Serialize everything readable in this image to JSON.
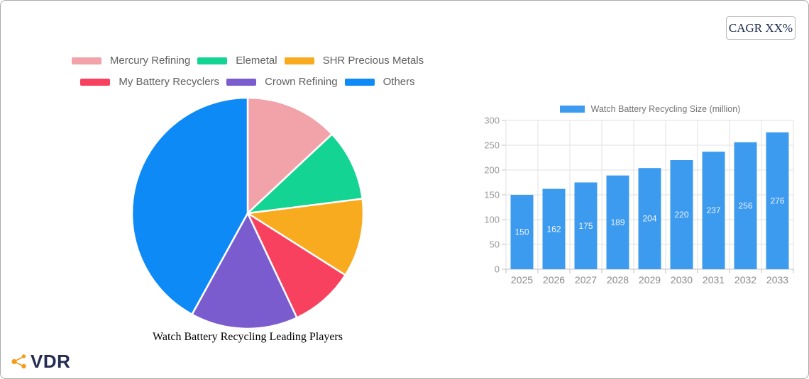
{
  "header": {
    "cagr_label": "CAGR XX%"
  },
  "logo": {
    "text": "VDR",
    "icon": "share-network-icon",
    "icon_color": "#F59C1C",
    "text_color": "#242C51"
  },
  "chart_data": [
    {
      "type": "pie",
      "title": "Watch Battery Recycling Leading Players",
      "labels": [
        "Mercury Refining",
        "Elemetal",
        "SHR Precious Metals",
        "My Battery Recyclers",
        "Crown Refining",
        "Others"
      ],
      "values": [
        13,
        10,
        11,
        9,
        15,
        42
      ],
      "colors": [
        "#F2A2A9",
        "#13D492",
        "#F9AB20",
        "#F8405F",
        "#7A5CCF",
        "#0D8AF6"
      ],
      "legend_position": "top",
      "start_angle": "12-o'clock",
      "direction": "clockwise",
      "slice_border_color": "#ffffff"
    },
    {
      "type": "bar",
      "categories": [
        "2025",
        "2026",
        "2027",
        "2028",
        "2029",
        "2030",
        "2031",
        "2032",
        "2033"
      ],
      "series": [
        {
          "name": "Watch Battery Recycling Size (million)",
          "values": [
            150,
            162,
            175,
            189,
            204,
            220,
            237,
            256,
            276
          ]
        }
      ],
      "bar_color": "#3D9BEF",
      "ylim": [
        0,
        300
      ],
      "y_ticks": [
        0,
        50,
        100,
        150,
        200,
        250,
        300
      ],
      "grid": true,
      "legend_position": "top",
      "value_label_position": "inside-center",
      "value_label_color": "#edf2f9"
    }
  ]
}
